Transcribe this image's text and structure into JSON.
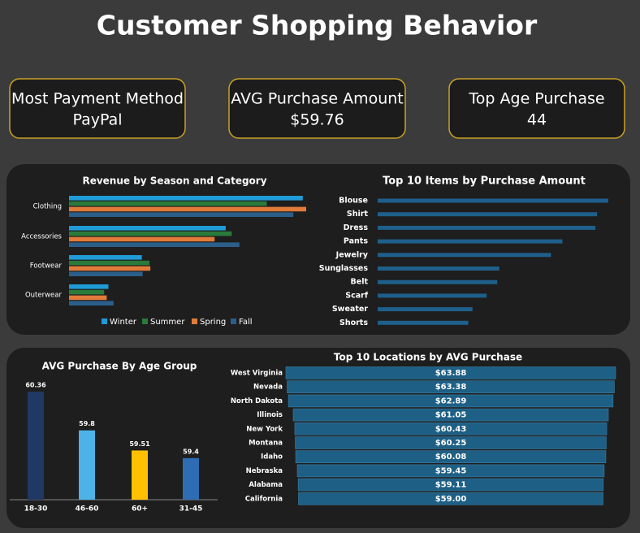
{
  "title": "Customer Shopping Behavior",
  "kpis": [
    {
      "label": "Most Payment Method",
      "value": "PayPal"
    },
    {
      "label": "AVG Purchase Amount",
      "value": "$59.76"
    },
    {
      "label": "Top Age Purchase",
      "value": "44"
    }
  ],
  "chart_data": [
    {
      "type": "bar",
      "orientation": "horizontal",
      "title": "Revenue by Season and Category",
      "categories": [
        "Clothing",
        "Accessories",
        "Footwear",
        "Outerwear"
      ],
      "series": [
        {
          "name": "Winter",
          "color": "#1f9bd7",
          "values": [
            27300,
            18300,
            8500,
            4600
          ]
        },
        {
          "name": "Summer",
          "color": "#2a7a3a",
          "values": [
            23100,
            19000,
            9400,
            4100
          ]
        },
        {
          "name": "Spring",
          "color": "#e07b39",
          "values": [
            27700,
            17000,
            9500,
            4400
          ]
        },
        {
          "name": "Fall",
          "color": "#2b5f8a",
          "values": [
            26200,
            19900,
            8600,
            5200
          ]
        }
      ],
      "legend": "bottom"
    },
    {
      "type": "bar",
      "orientation": "horizontal",
      "title": "Top 10 Items by Purchase Amount",
      "categories": [
        "Blouse",
        "Shirt",
        "Dress",
        "Pants",
        "Jewelry",
        "Sunglasses",
        "Belt",
        "Scarf",
        "Sweater",
        "Shorts"
      ],
      "values": [
        10410,
        10332,
        10320,
        10090,
        10010,
        9649,
        9635,
        9561,
        9462,
        9433
      ],
      "color": "#1f5f8b",
      "xlim": [
        8800,
        10450
      ]
    },
    {
      "type": "bar",
      "orientation": "vertical",
      "title": "AVG Purchase By Age Group",
      "categories": [
        "18-30",
        "46-60",
        "60+",
        "31-45"
      ],
      "values": [
        60.36,
        59.8,
        59.51,
        59.4
      ],
      "colors": [
        "#1f3864",
        "#4db3e6",
        "#ffc000",
        "#2e6db4"
      ],
      "ylim": [
        58.8,
        60.5
      ]
    },
    {
      "type": "funnel",
      "title": "Top 10 Locations by AVG Purchase",
      "categories": [
        "West Virginia",
        "Nevada",
        "North Dakota",
        "Illinois",
        "New York",
        "Montana",
        "Idaho",
        "Nebraska",
        "Alabama",
        "California"
      ],
      "values": [
        63.88,
        63.38,
        62.89,
        61.05,
        60.43,
        60.25,
        60.08,
        59.45,
        59.11,
        59.0
      ],
      "value_labels": [
        "$63.88",
        "$63.38",
        "$62.89",
        "$61.05",
        "$60.43",
        "$60.25",
        "$60.08",
        "$59.45",
        "$59.11",
        "$59.00"
      ],
      "color": "#1e5f85"
    }
  ]
}
